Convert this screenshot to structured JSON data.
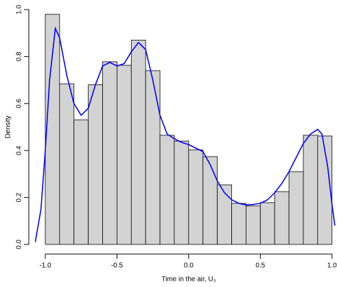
{
  "chart_data": {
    "type": "histogram",
    "xlabel": "Time in the air, U₃",
    "ylabel": "Density",
    "bins": [
      -1.0,
      -0.9,
      -0.8,
      -0.7,
      -0.6,
      -0.5,
      -0.4,
      -0.3,
      -0.2,
      -0.1,
      0.0,
      0.1,
      0.2,
      0.3,
      0.4,
      0.5,
      0.6,
      0.7,
      0.8,
      0.9,
      1.0
    ],
    "values": [
      0.98,
      0.684,
      0.53,
      0.68,
      0.778,
      0.763,
      0.87,
      0.74,
      0.465,
      0.44,
      0.403,
      0.374,
      0.254,
      0.175,
      0.164,
      0.178,
      0.225,
      0.31,
      0.465,
      0.462
    ],
    "color": "#d3d3d3",
    "density_curve": {
      "color": "#0000ff",
      "x": [
        -1.07,
        -1.03,
        -1.0,
        -0.97,
        -0.93,
        -0.9,
        -0.85,
        -0.8,
        -0.75,
        -0.7,
        -0.65,
        -0.6,
        -0.55,
        -0.5,
        -0.45,
        -0.4,
        -0.35,
        -0.3,
        -0.25,
        -0.2,
        -0.15,
        -0.1,
        -0.05,
        0.0,
        0.05,
        0.1,
        0.15,
        0.2,
        0.25,
        0.3,
        0.35,
        0.4,
        0.45,
        0.5,
        0.55,
        0.6,
        0.65,
        0.7,
        0.75,
        0.8,
        0.85,
        0.9,
        0.93,
        0.97,
        1.0,
        1.02
      ],
      "values": [
        0.01,
        0.15,
        0.4,
        0.7,
        0.92,
        0.88,
        0.72,
        0.6,
        0.55,
        0.58,
        0.68,
        0.76,
        0.775,
        0.76,
        0.77,
        0.82,
        0.86,
        0.83,
        0.7,
        0.55,
        0.47,
        0.45,
        0.435,
        0.425,
        0.41,
        0.395,
        0.34,
        0.27,
        0.22,
        0.19,
        0.175,
        0.168,
        0.17,
        0.175,
        0.19,
        0.22,
        0.26,
        0.31,
        0.37,
        0.43,
        0.47,
        0.49,
        0.47,
        0.33,
        0.17,
        0.08
      ]
    },
    "xlim": [
      -1.11,
      1.03
    ],
    "ylim": [
      0,
      1
    ],
    "xticks": [
      {
        "value": -1,
        "label": "-1.0"
      },
      -0.5,
      {
        "value": 0,
        "label": "0.0"
      },
      0.5,
      {
        "value": 1,
        "label": "1.0"
      }
    ],
    "yticks": [
      {
        "value": 0,
        "label": "0.0"
      },
      0.2,
      0.4,
      0.6,
      0.8,
      {
        "value": 1,
        "label": "1.0"
      }
    ]
  }
}
